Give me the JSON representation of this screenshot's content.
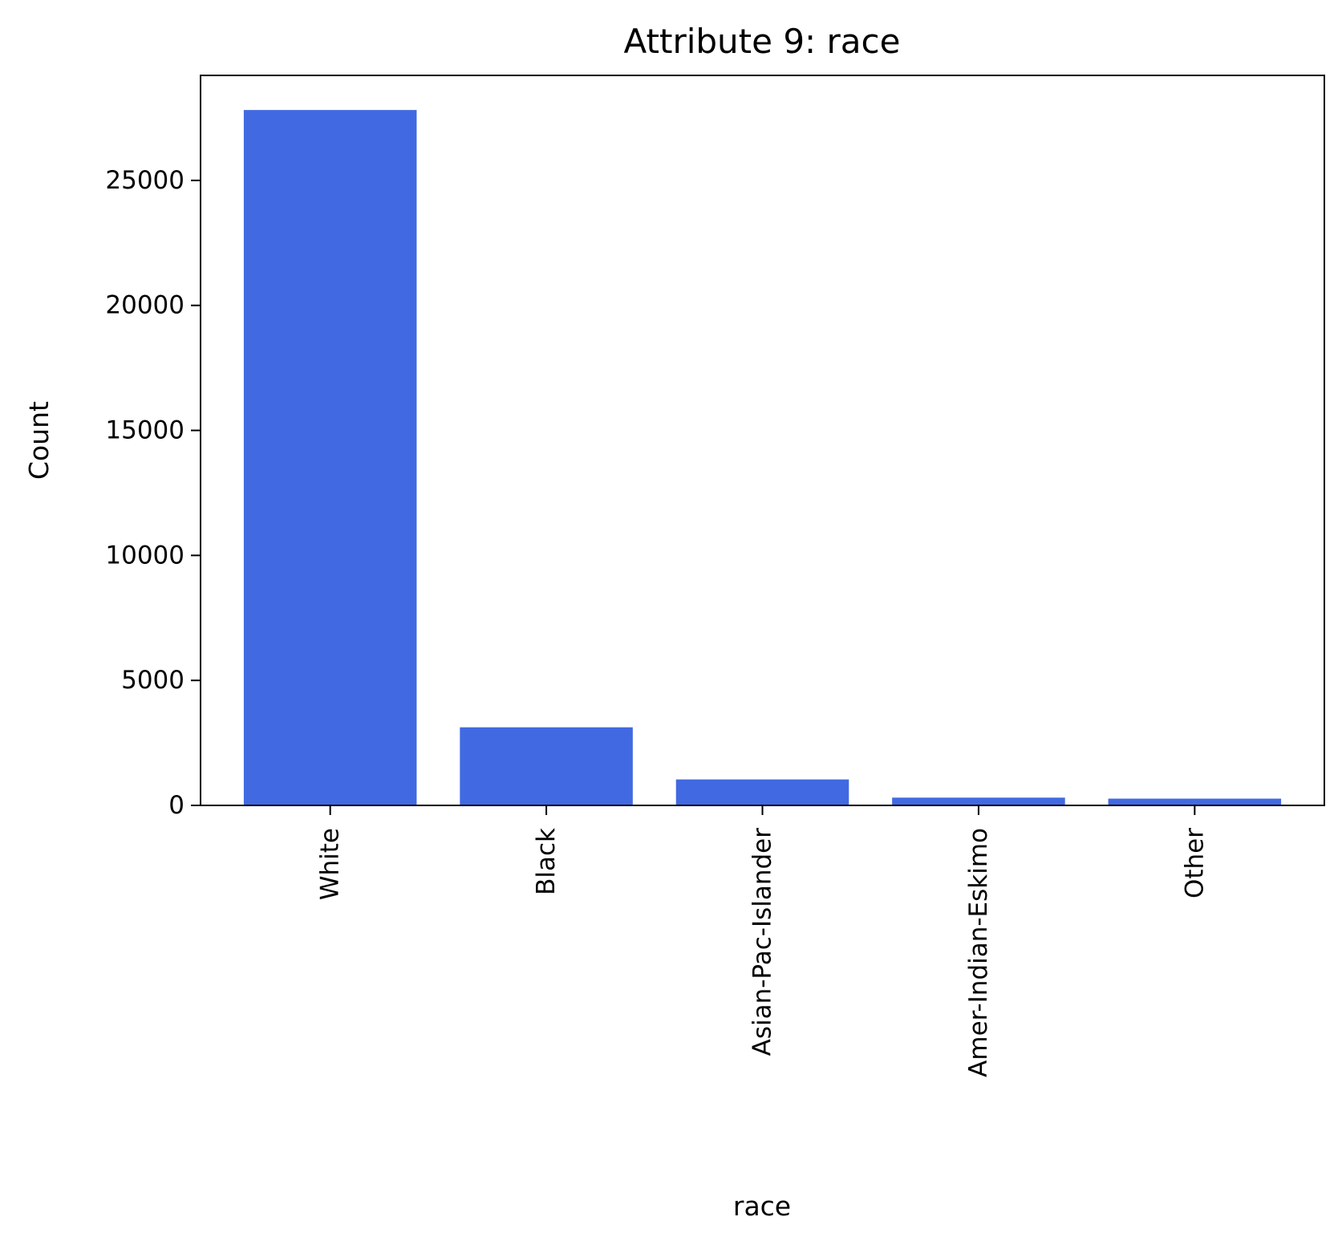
{
  "chart_data": {
    "type": "bar",
    "title": "Attribute 9: race",
    "xlabel": "race",
    "ylabel": "Count",
    "categories": [
      "White",
      "Black",
      "Asian-Pac-Islander",
      "Amer-Indian-Eskimo",
      "Other"
    ],
    "values": [
      27816,
      3124,
      1039,
      311,
      271
    ],
    "ylim": [
      0,
      29200
    ],
    "yticks": [
      0,
      5000,
      10000,
      15000,
      20000,
      25000
    ],
    "ytick_labels": [
      "0",
      "5000",
      "10000",
      "15000",
      "20000",
      "25000"
    ],
    "bar_color": "#4169e1",
    "grid": false,
    "legend": "none"
  }
}
